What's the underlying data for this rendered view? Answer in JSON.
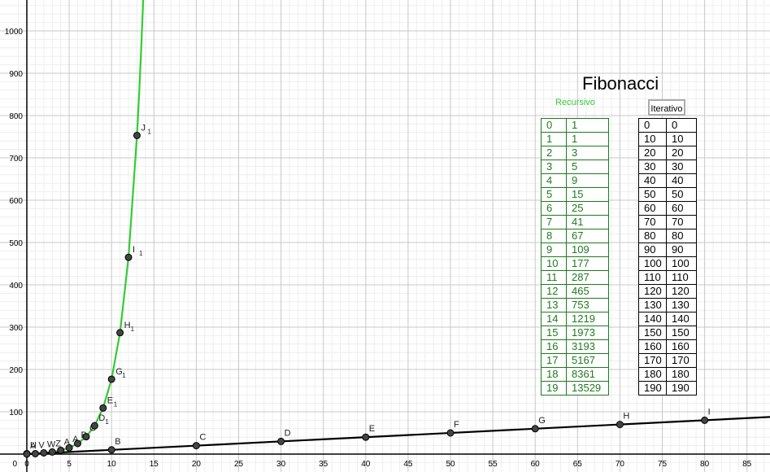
{
  "chart_data": {
    "type": "scatter",
    "title": "Fibonacci",
    "xlim": [
      -1,
      90
    ],
    "ylim": [
      -40,
      1060
    ],
    "x_ticks": [
      0,
      5,
      10,
      15,
      20,
      25,
      30,
      35,
      40,
      45,
      50,
      55,
      60,
      65,
      70,
      75,
      80,
      85
    ],
    "y_ticks": [
      100,
      200,
      300,
      400,
      500,
      600,
      700,
      800,
      900,
      1000
    ],
    "grid": true,
    "series": [
      {
        "name": "Recursivo",
        "color": "#33cc33",
        "curve": "exponential",
        "points": [
          {
            "label": "U",
            "x": 0,
            "y": 1
          },
          {
            "label": "V",
            "x": 1,
            "y": 1
          },
          {
            "label": "W",
            "x": 2,
            "y": 3
          },
          {
            "label": "Z",
            "x": 3,
            "y": 5
          },
          {
            "label": "A",
            "x": 4,
            "y": 9
          },
          {
            "label": "A",
            "x": 5,
            "y": 15
          },
          {
            "label": "B",
            "x": 6,
            "y": 25
          },
          {
            "label": "C",
            "x": 7,
            "y": 41
          },
          {
            "label": "D",
            "x": 8,
            "y": 67
          },
          {
            "label": "E",
            "x": 9,
            "y": 109
          },
          {
            "label": "G",
            "x": 10,
            "y": 177
          },
          {
            "label": "H",
            "x": 11,
            "y": 287
          },
          {
            "label": "I",
            "x": 12,
            "y": 465
          },
          {
            "label": "J",
            "x": 13,
            "y": 753
          }
        ]
      },
      {
        "name": "Iterativo",
        "color": "#000000",
        "curve": "linear",
        "points": [
          {
            "label": "A",
            "x": 0,
            "y": 0
          },
          {
            "label": "B",
            "x": 10,
            "y": 10
          },
          {
            "label": "C",
            "x": 20,
            "y": 20
          },
          {
            "label": "D",
            "x": 30,
            "y": 30
          },
          {
            "label": "E",
            "x": 40,
            "y": 40
          },
          {
            "label": "F",
            "x": 50,
            "y": 50
          },
          {
            "label": "G",
            "x": 60,
            "y": 60
          },
          {
            "label": "H",
            "x": 70,
            "y": 70
          },
          {
            "label": "I",
            "x": 80,
            "y": 80
          }
        ]
      }
    ]
  },
  "tables": {
    "recursive_label": "Recursivo",
    "iterative_label": "Iterativo",
    "recursive": [
      [
        "0",
        "1"
      ],
      [
        "1",
        "1"
      ],
      [
        "2",
        "3"
      ],
      [
        "3",
        "5"
      ],
      [
        "4",
        "9"
      ],
      [
        "5",
        "15"
      ],
      [
        "6",
        "25"
      ],
      [
        "7",
        "41"
      ],
      [
        "8",
        "67"
      ],
      [
        "9",
        "109"
      ],
      [
        "10",
        "177"
      ],
      [
        "11",
        "287"
      ],
      [
        "12",
        "465"
      ],
      [
        "13",
        "753"
      ],
      [
        "14",
        "1219"
      ],
      [
        "15",
        "1973"
      ],
      [
        "16",
        "3193"
      ],
      [
        "17",
        "5167"
      ],
      [
        "18",
        "8361"
      ],
      [
        "19",
        "13529"
      ]
    ],
    "iterative": [
      [
        "0",
        "0"
      ],
      [
        "10",
        "10"
      ],
      [
        "20",
        "20"
      ],
      [
        "30",
        "30"
      ],
      [
        "40",
        "40"
      ],
      [
        "50",
        "50"
      ],
      [
        "60",
        "60"
      ],
      [
        "70",
        "70"
      ],
      [
        "80",
        "80"
      ],
      [
        "90",
        "90"
      ],
      [
        "100",
        "100"
      ],
      [
        "110",
        "110"
      ],
      [
        "120",
        "120"
      ],
      [
        "130",
        "130"
      ],
      [
        "140",
        "140"
      ],
      [
        "150",
        "150"
      ],
      [
        "160",
        "160"
      ],
      [
        "170",
        "170"
      ],
      [
        "180",
        "180"
      ],
      [
        "190",
        "190"
      ]
    ]
  }
}
